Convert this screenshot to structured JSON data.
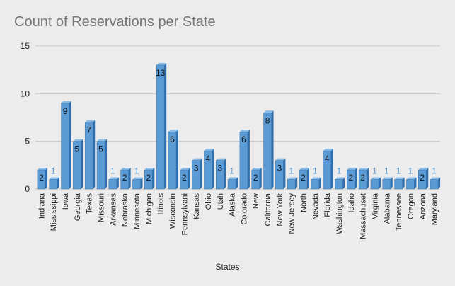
{
  "chart_data": {
    "type": "bar",
    "title": "Count of Reservations per State",
    "xlabel": "States",
    "ylabel": "",
    "ylim": [
      0,
      15
    ],
    "yticks": [
      0,
      5,
      10,
      15
    ],
    "grid": true,
    "categories": [
      "Indiana",
      "Mississippi",
      "Iowa",
      "Georgia",
      "Texas",
      "Missouri",
      "Arkansas",
      "Nebraska",
      "Minnesota",
      "Michigan",
      "Illinois",
      "Wisconsin",
      "Pennsylvani",
      "Kansas",
      "Ohio",
      "Utah",
      "Alaska",
      "Colorado",
      "New",
      "California",
      "New York",
      "New Jersey",
      "North",
      "Nevada",
      "Florida",
      "Washington",
      "Idaho",
      "Massachuset",
      "Virginia",
      "Alabama",
      "Tennessee",
      "Oregon",
      "Arizona",
      "Maryland"
    ],
    "values": [
      2,
      1,
      9,
      5,
      7,
      5,
      1,
      2,
      1,
      2,
      13,
      6,
      2,
      3,
      4,
      3,
      1,
      6,
      2,
      8,
      3,
      1,
      2,
      1,
      4,
      1,
      2,
      2,
      1,
      1,
      1,
      1,
      2,
      1
    ],
    "colors": {
      "bar_front": "#5b9bd5",
      "bar_top": "#8bbbe7",
      "bar_side": "#2f6fb0",
      "bar_outline": "#3a6fa0",
      "label_inside": "#111111",
      "label_above": "#5b9bd5",
      "gridline": "#c8c8c8",
      "axis_text": "#222222"
    }
  }
}
